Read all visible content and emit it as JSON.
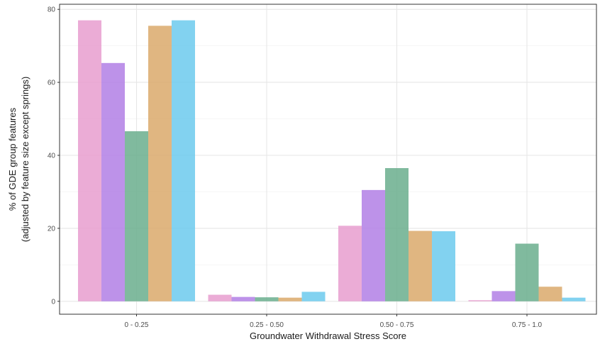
{
  "chart_data": {
    "type": "bar",
    "title": "",
    "xlabel": "Groundwater Withdrawal Stress Score",
    "ylabel_lines": [
      "% of GDE group features",
      "(adjusted by feature size except springs)"
    ],
    "categories": [
      "0 - 0.25",
      "0.25 - 0.50",
      "0.50 - 0.75",
      "0.75 - 1.0"
    ],
    "ylim": [
      0,
      80
    ],
    "yticks": [
      0,
      20,
      40,
      60,
      80
    ],
    "grid": true,
    "legend": "none",
    "series": [
      {
        "color": "#E79ECF",
        "values": [
          77.0,
          1.8,
          20.7,
          0.3
        ]
      },
      {
        "color": "#B27FE5",
        "values": [
          65.3,
          1.2,
          30.5,
          2.8
        ]
      },
      {
        "color": "#6AAE8D",
        "values": [
          46.6,
          1.1,
          36.5,
          15.8
        ]
      },
      {
        "color": "#DAA96B",
        "values": [
          75.5,
          1.0,
          19.3,
          4.0
        ]
      },
      {
        "color": "#6CCAED",
        "values": [
          77.0,
          2.6,
          19.2,
          1.0
        ]
      }
    ]
  }
}
